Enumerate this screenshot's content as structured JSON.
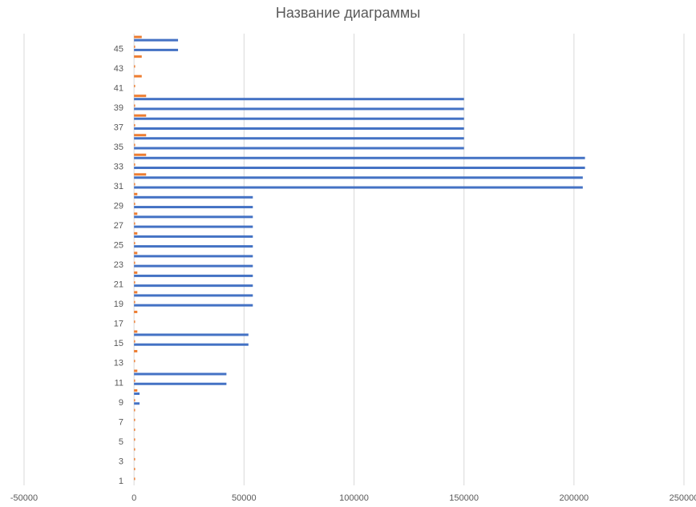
{
  "chart_data": {
    "type": "bar",
    "orientation": "horizontal",
    "title": "Название диаграммы",
    "xlim": [
      -50000,
      250000
    ],
    "x_ticks": [
      "-50000",
      "0",
      "50000",
      "100000",
      "150000",
      "200000",
      "250000"
    ],
    "x_tick_values": [
      -50000,
      0,
      50000,
      100000,
      150000,
      200000,
      250000
    ],
    "categories": [
      1,
      2,
      3,
      4,
      5,
      6,
      7,
      8,
      9,
      10,
      11,
      12,
      13,
      14,
      15,
      16,
      17,
      18,
      19,
      20,
      21,
      22,
      23,
      24,
      25,
      26,
      27,
      28,
      29,
      30,
      31,
      32,
      33,
      34,
      35,
      36,
      37,
      38,
      39,
      40,
      41,
      42,
      43,
      44,
      45,
      46
    ],
    "y_tick_labels": [
      "1",
      "3",
      "5",
      "7",
      "9",
      "11",
      "13",
      "15",
      "17",
      "19",
      "21",
      "23",
      "25",
      "27",
      "29",
      "31",
      "33",
      "35",
      "37",
      "39",
      "41",
      "43",
      "45"
    ],
    "grid": true,
    "colors": {
      "series1": "#4472C4",
      "series2": "#ED7D31",
      "grid": "#D9D9D9",
      "text": "#595959"
    },
    "series": [
      {
        "values": [
          0,
          0,
          0,
          0,
          0,
          0,
          0,
          0,
          2500,
          2500,
          42000,
          42000,
          0,
          0,
          52000,
          52000,
          0,
          0,
          54000,
          54000,
          54000,
          54000,
          54000,
          54000,
          54000,
          54000,
          54000,
          54000,
          54000,
          54000,
          204000,
          204000,
          205000,
          205000,
          150000,
          150000,
          150000,
          150000,
          150000,
          150000,
          0,
          0,
          0,
          0,
          20000,
          20000
        ]
      },
      {
        "values": [
          500,
          500,
          500,
          500,
          500,
          500,
          500,
          500,
          500,
          1500,
          500,
          1500,
          500,
          1500,
          500,
          1500,
          500,
          1500,
          500,
          1500,
          500,
          1500,
          500,
          1500,
          500,
          1500,
          500,
          1500,
          500,
          1500,
          500,
          5500,
          500,
          5500,
          500,
          5500,
          500,
          5500,
          500,
          5500,
          500,
          3500,
          500,
          3500,
          500,
          3500
        ]
      }
    ]
  }
}
